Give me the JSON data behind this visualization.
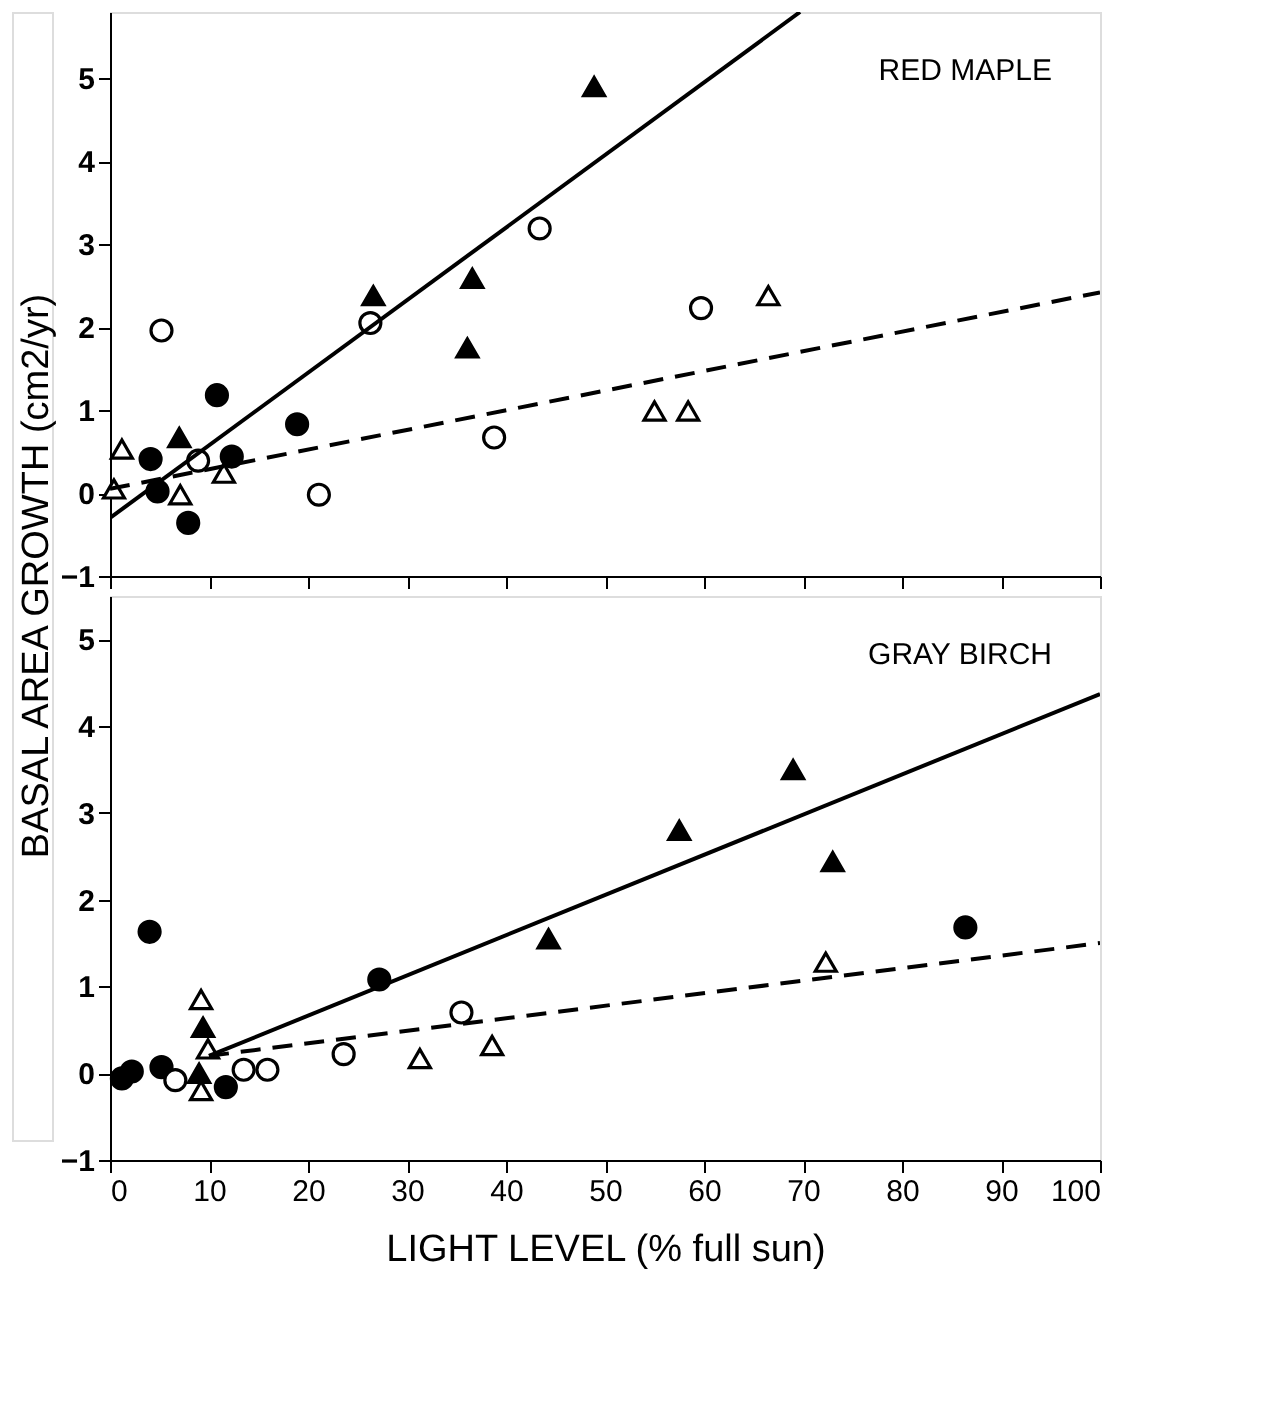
{
  "chart_data": [
    {
      "type": "scatter",
      "title": "RED MAPLE",
      "ylabel": "BASAL AREA GROWTH (cm2/yr)",
      "xlim": [
        0,
        100
      ],
      "xticks": [
        0,
        10,
        20,
        30,
        40,
        50,
        60,
        70,
        80,
        90,
        100
      ],
      "ylim": [
        -1,
        5.8
      ],
      "yticks": [
        -1,
        0,
        1,
        2,
        3,
        4,
        5
      ],
      "tick_labels": "y",
      "grid": false,
      "legend": false,
      "series": [
        {
          "color": "#000000",
          "marker": "triangle",
          "x": [
            48.9,
            26.6,
            36.6,
            36.1,
            7.0
          ],
          "values": [
            4.9,
            2.38,
            2.59,
            1.75,
            0.67
          ]
        },
        {
          "color": "#ffffff",
          "marker": "triangle",
          "x": [
            1.2,
            0.4,
            7.1,
            11.5,
            55,
            58.4,
            66.5
          ],
          "values": [
            0.53,
            0.05,
            -0.02,
            0.24,
            0.99,
            0.99,
            2.38
          ]
        },
        {
          "color": "#000000",
          "marker": "circle",
          "x": [
            4.1,
            4.8,
            10.8,
            12.3,
            7.9,
            18.9
          ],
          "values": [
            0.41,
            0.02,
            1.18,
            0.44,
            -0.36,
            0.83
          ]
        },
        {
          "color": "#ffffff",
          "marker": "circle",
          "x": [
            5.2,
            8.9,
            21.1,
            26.3,
            43.4,
            38.8,
            59.7
          ],
          "values": [
            1.96,
            0.39,
            -0.02,
            2.05,
            3.19,
            0.67,
            2.23
          ]
        },
        {
          "type": "line",
          "color": "#000000",
          "line_style": "solid",
          "marker": "none",
          "x": [
            0,
            69.7
          ],
          "values": [
            -0.3,
            5.8
          ]
        },
        {
          "type": "line",
          "color": "#000000",
          "line_style": "dashed",
          "marker": "none",
          "x": [
            0,
            100
          ],
          "values": [
            0.05,
            2.42
          ]
        }
      ]
    },
    {
      "type": "scatter",
      "title": "GRAY BIRCH",
      "xlabel": "LIGHT LEVEL   (% full sun)",
      "xlim": [
        0,
        100
      ],
      "xticks": [
        0,
        10,
        20,
        30,
        40,
        50,
        60,
        70,
        80,
        90,
        100
      ],
      "ylim": [
        -1,
        5.5
      ],
      "yticks": [
        -1,
        0,
        1,
        2,
        3,
        4,
        5
      ],
      "grid": false,
      "legend": false,
      "series": [
        {
          "color": "#000000",
          "marker": "triangle",
          "x": [
            69.0,
            57.5,
            73.0,
            44.3,
            9.4,
            9.0
          ],
          "values": [
            3.5,
            2.8,
            2.44,
            1.55,
            0.53,
            0.0
          ]
        },
        {
          "color": "#ffffff",
          "marker": "triangle",
          "x": [
            9.2,
            9.9,
            9.2,
            31.3,
            38.6,
            72.3
          ],
          "values": [
            0.85,
            0.28,
            -0.2,
            0.17,
            0.32,
            1.28
          ]
        },
        {
          "color": "#000000",
          "marker": "circle",
          "x": [
            4.0,
            27.2,
            86.4,
            1.2,
            2.2,
            5.2,
            11.7
          ],
          "values": [
            1.63,
            1.08,
            1.68,
            -0.06,
            0.02,
            0.07,
            -0.16
          ]
        },
        {
          "color": "#ffffff",
          "marker": "circle",
          "x": [
            35.5,
            23.6,
            15.9,
            13.5,
            6.6
          ],
          "values": [
            0.7,
            0.22,
            0.04,
            0.04,
            -0.08
          ]
        },
        {
          "type": "line",
          "color": "#000000",
          "line_style": "solid",
          "marker": "none",
          "x": [
            10,
            100
          ],
          "values": [
            0.2,
            4.37
          ]
        },
        {
          "type": "line",
          "color": "#000000",
          "line_style": "dashed",
          "marker": "none",
          "x": [
            10,
            100
          ],
          "values": [
            0.2,
            1.5
          ]
        }
      ]
    }
  ]
}
